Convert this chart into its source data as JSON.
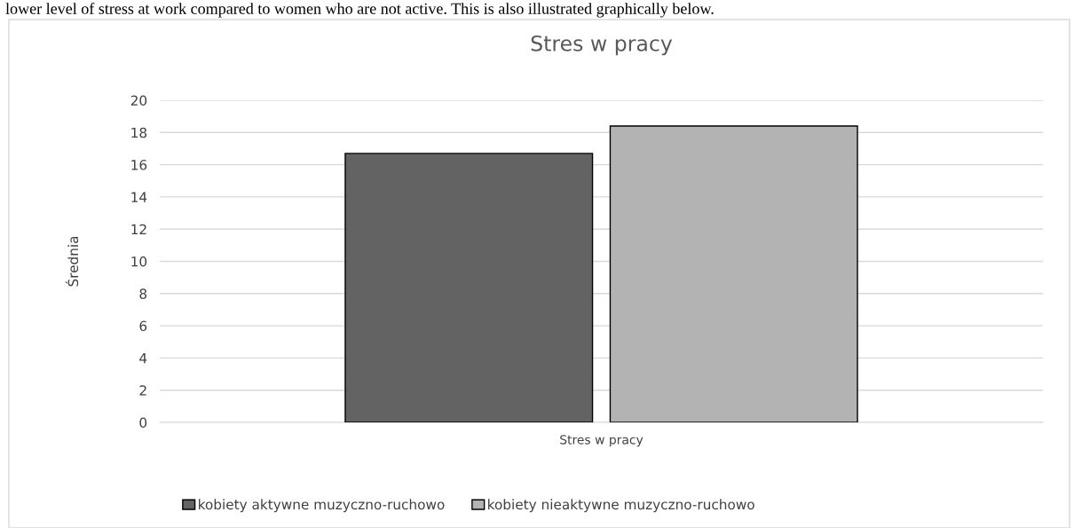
{
  "chart_data": {
    "type": "bar",
    "title": "Stres w pracy",
    "ylabel": "Średnia",
    "categories": [
      "Stres w pracy"
    ],
    "series": [
      {
        "name": "kobiety aktywne muzyczno-ruchowo",
        "color": "#636363",
        "values": [
          16.7
        ]
      },
      {
        "name": "kobiety nieaktywne muzyczno-ruchowo",
        "color": "#b3b3b3",
        "values": [
          18.4
        ]
      }
    ],
    "ylim": [
      0,
      20
    ],
    "yticks": [
      0,
      2,
      4,
      6,
      8,
      10,
      12,
      14,
      16,
      18,
      20
    ],
    "grid": "y",
    "legend": "bottom",
    "annotations": [
      "lower level of stress at work compared to women who are not active. This is also illustrated graphically below."
    ]
  }
}
